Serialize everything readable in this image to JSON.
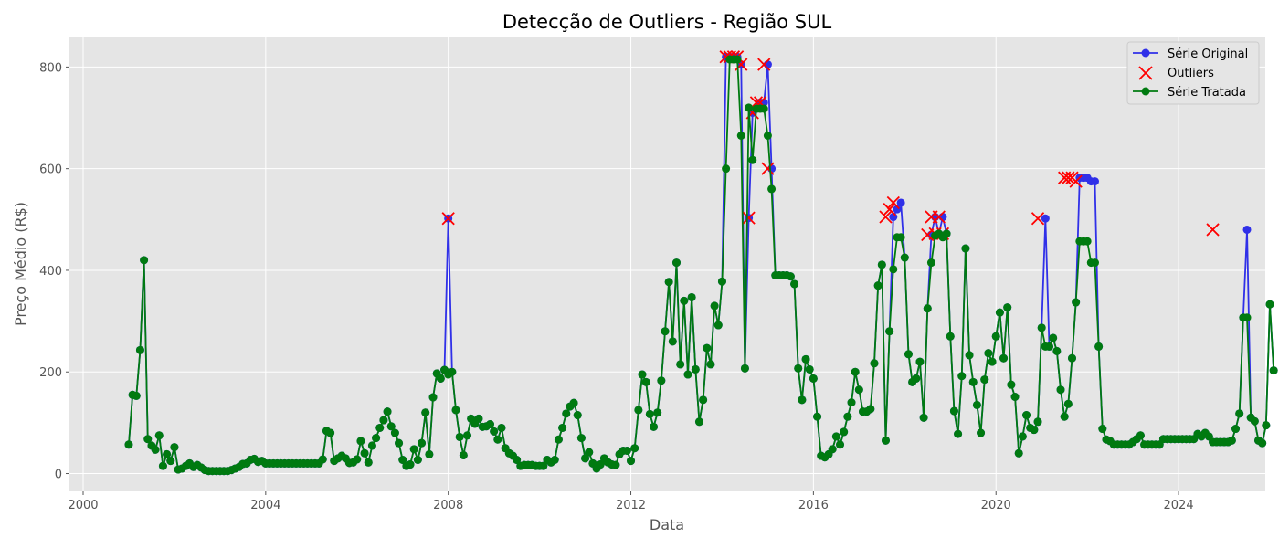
{
  "chart_data": {
    "type": "line",
    "title": "Detecção de Outliers - Região SUL",
    "xlabel": "Data",
    "ylabel": "Preço Médio (R$)",
    "xlim": [
      1999.7,
      2025.9
    ],
    "ylim": [
      -35,
      860
    ],
    "xticks": [
      2000,
      2004,
      2008,
      2012,
      2016,
      2020,
      2024
    ],
    "yticks": [
      0,
      200,
      400,
      600,
      800
    ],
    "grid": true,
    "legend_position": "top-right",
    "colors": {
      "original": "#3030e8",
      "outlier": "#ff0000",
      "treated": "#007a10",
      "plot_bg": "#e5e5e5",
      "grid": "#ffffff"
    },
    "legend": [
      "Série Original",
      "Outliers",
      "Série Tratada"
    ],
    "x_start": "2001-01",
    "x_step_months": 1,
    "series": [
      {
        "name": "Série Original",
        "values": [
          57,
          155,
          153,
          243,
          420,
          68,
          55,
          47,
          75,
          15,
          38,
          25,
          52,
          8,
          10,
          15,
          20,
          13,
          17,
          12,
          7,
          5,
          5,
          5,
          5,
          5,
          5,
          7,
          10,
          13,
          19,
          20,
          27,
          29,
          23,
          25,
          20,
          20,
          20,
          20,
          20,
          20,
          20,
          20,
          20,
          20,
          20,
          20,
          20,
          20,
          20,
          28,
          84,
          80,
          25,
          30,
          35,
          30,
          21,
          22,
          28,
          64,
          40,
          22,
          55,
          70,
          90,
          105,
          122,
          93,
          80,
          60,
          27,
          15,
          18,
          48,
          27,
          60,
          120,
          38,
          150,
          197,
          187,
          204,
          502,
          200,
          125,
          72,
          36,
          75,
          108,
          98,
          108,
          92,
          93,
          97,
          83,
          67,
          90,
          50,
          40,
          35,
          27,
          15,
          17,
          17,
          17,
          15,
          15,
          15,
          27,
          22,
          27,
          67,
          90,
          118,
          132,
          139,
          115,
          70,
          30,
          42,
          20,
          10,
          18,
          30,
          22,
          18,
          17,
          38,
          45,
          45,
          25,
          50,
          125,
          195,
          180,
          117,
          92,
          120,
          183,
          280,
          377,
          260,
          415,
          215,
          340,
          195,
          347,
          205,
          102,
          145,
          247,
          215,
          330,
          292,
          378,
          820,
          820,
          820,
          820,
          805,
          207,
          503,
          710,
          718,
          730,
          730,
          805,
          600,
          390,
          390,
          390,
          390,
          388,
          373,
          207,
          145,
          225,
          205,
          187,
          112,
          35,
          32,
          38,
          48,
          73,
          57,
          82,
          112,
          140,
          200,
          165,
          122,
          122,
          127,
          217,
          370,
          411,
          65,
          280,
          505,
          520,
          533,
          425,
          235,
          180,
          187,
          220,
          110,
          325,
          470,
          505,
          472,
          505,
          472,
          270,
          123,
          78,
          192,
          443,
          233,
          180,
          135,
          80,
          185,
          237,
          220,
          270,
          317,
          227,
          327,
          175,
          151,
          40,
          73,
          115,
          90,
          86,
          102,
          287,
          502,
          250,
          267,
          241,
          165,
          112,
          137,
          227,
          337,
          582,
          582,
          582,
          575,
          575,
          250,
          88,
          67,
          64,
          57,
          57,
          57,
          57,
          57,
          62,
          68,
          75,
          57,
          57,
          57,
          57,
          57,
          68,
          68,
          68,
          68,
          68,
          68,
          68,
          68,
          68,
          78,
          73,
          80,
          73,
          62,
          62,
          62,
          62,
          62,
          65,
          88,
          118,
          307,
          480,
          110,
          103,
          65,
          60,
          95,
          333,
          203
        ]
      },
      {
        "name": "Série Tratada",
        "values": [
          57,
          155,
          153,
          243,
          420,
          68,
          55,
          47,
          75,
          15,
          38,
          25,
          52,
          8,
          10,
          15,
          20,
          13,
          17,
          12,
          7,
          5,
          5,
          5,
          5,
          5,
          5,
          7,
          10,
          13,
          19,
          20,
          27,
          29,
          23,
          25,
          20,
          20,
          20,
          20,
          20,
          20,
          20,
          20,
          20,
          20,
          20,
          20,
          20,
          20,
          20,
          28,
          84,
          80,
          25,
          30,
          35,
          30,
          21,
          22,
          28,
          64,
          40,
          22,
          55,
          70,
          90,
          105,
          122,
          93,
          80,
          60,
          27,
          15,
          18,
          48,
          27,
          60,
          120,
          38,
          150,
          197,
          187,
          204,
          195,
          200,
          125,
          72,
          36,
          75,
          108,
          98,
          108,
          92,
          93,
          97,
          83,
          67,
          90,
          50,
          40,
          35,
          27,
          15,
          17,
          17,
          17,
          15,
          15,
          15,
          27,
          22,
          27,
          67,
          90,
          118,
          132,
          139,
          115,
          70,
          30,
          42,
          20,
          10,
          18,
          30,
          22,
          18,
          17,
          38,
          45,
          45,
          25,
          50,
          125,
          195,
          180,
          117,
          92,
          120,
          183,
          280,
          377,
          260,
          415,
          215,
          340,
          195,
          347,
          205,
          102,
          145,
          247,
          215,
          330,
          292,
          378,
          600,
          815,
          815,
          815,
          665,
          207,
          720,
          617,
          718,
          718,
          718,
          665,
          560,
          390,
          390,
          390,
          390,
          388,
          373,
          207,
          145,
          225,
          205,
          187,
          112,
          35,
          32,
          38,
          48,
          73,
          57,
          82,
          112,
          140,
          200,
          165,
          122,
          122,
          127,
          217,
          370,
          411,
          65,
          280,
          402,
          465,
          465,
          425,
          235,
          180,
          187,
          220,
          110,
          325,
          415,
          468,
          472,
          465,
          472,
          270,
          123,
          78,
          192,
          443,
          233,
          180,
          135,
          80,
          185,
          237,
          220,
          270,
          317,
          227,
          327,
          175,
          151,
          40,
          73,
          115,
          90,
          86,
          102,
          287,
          250,
          250,
          267,
          241,
          165,
          112,
          137,
          227,
          337,
          457,
          457,
          457,
          415,
          415,
          250,
          88,
          67,
          64,
          57,
          57,
          57,
          57,
          57,
          62,
          68,
          75,
          57,
          57,
          57,
          57,
          57,
          68,
          68,
          68,
          68,
          68,
          68,
          68,
          68,
          68,
          78,
          73,
          80,
          73,
          62,
          62,
          62,
          62,
          62,
          65,
          88,
          118,
          307,
          307,
          110,
          103,
          65,
          60,
          95,
          333,
          203
        ]
      },
      {
        "name": "Outliers",
        "points": [
          [
            "2008-01",
            502
          ],
          [
            "2014-02",
            820
          ],
          [
            "2014-03",
            820
          ],
          [
            "2014-04",
            820
          ],
          [
            "2014-05",
            820
          ],
          [
            "2014-06",
            805
          ],
          [
            "2014-08",
            503
          ],
          [
            "2014-09",
            710
          ],
          [
            "2014-10",
            730
          ],
          [
            "2014-11",
            730
          ],
          [
            "2014-12",
            805
          ],
          [
            "2015-01",
            600
          ],
          [
            "2017-08",
            505
          ],
          [
            "2017-09",
            520
          ],
          [
            "2017-10",
            533
          ],
          [
            "2018-07",
            470
          ],
          [
            "2018-08",
            505
          ],
          [
            "2018-09",
            472
          ],
          [
            "2018-10",
            505
          ],
          [
            "2018-11",
            472
          ],
          [
            "2020-12",
            502
          ],
          [
            "2021-07",
            582
          ],
          [
            "2021-08",
            582
          ],
          [
            "2021-09",
            582
          ],
          [
            "2021-10",
            575
          ],
          [
            "2024-10",
            480
          ]
        ]
      }
    ]
  }
}
